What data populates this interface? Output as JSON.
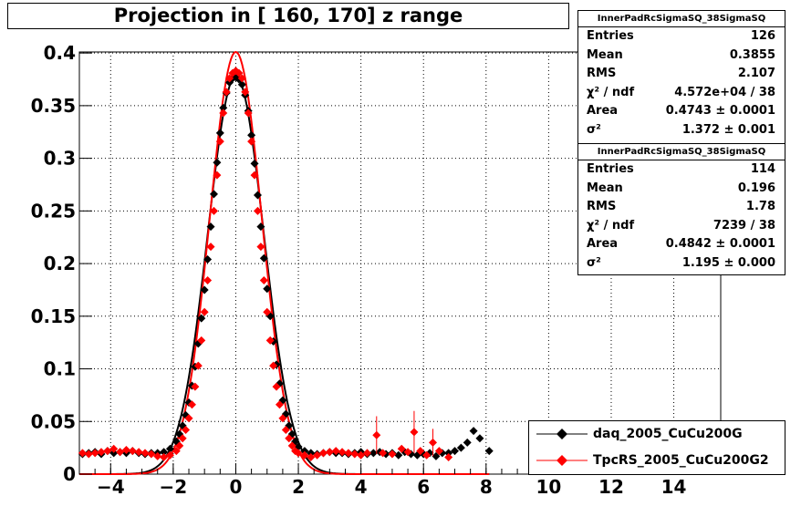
{
  "title": "Projection in [ 160, 170] z range",
  "stats": [
    {
      "name": "InnerPadRcSigmaSQ_38SigmaSQ",
      "rows": [
        {
          "key": "Entries",
          "value": "126"
        },
        {
          "key": "Mean",
          "value": "0.3855"
        },
        {
          "key": "RMS",
          "value": "2.107"
        },
        {
          "key": "χ² / ndf",
          "value": "4.572e+04 / 38"
        },
        {
          "key": "Area",
          "value": "0.4743 ± 0.0001"
        },
        {
          "key": "σ²",
          "value": "1.372 ± 0.001"
        }
      ]
    },
    {
      "name": "InnerPadRcSigmaSQ_38SigmaSQ",
      "rows": [
        {
          "key": "Entries",
          "value": "114"
        },
        {
          "key": "Mean",
          "value": "0.196"
        },
        {
          "key": "RMS",
          "value": "1.78"
        },
        {
          "key": "χ² / ndf",
          "value": "7239 / 38"
        },
        {
          "key": "Area",
          "value": "0.4842 ± 0.0001"
        },
        {
          "key": "σ²",
          "value": "1.195 ± 0.000"
        }
      ]
    }
  ],
  "legend": [
    {
      "label": "daq_2005_CuCu200G",
      "color": "#000000"
    },
    {
      "label": "TpcRS_2005_CuCu200G2",
      "color": "#ff0000"
    }
  ],
  "chart_data": {
    "type": "scatter",
    "title": "Projection in [ 160, 170] z range",
    "xlim": [
      -5,
      15.5
    ],
    "ylim": [
      0,
      0.401
    ],
    "x_ticks": [
      "−4",
      "−2",
      "0",
      "2",
      "4",
      "6",
      "8",
      "10",
      "12",
      "14"
    ],
    "x_tick_values": [
      -4,
      -2,
      0,
      2,
      4,
      6,
      8,
      10,
      12,
      14
    ],
    "y_ticks": [
      "0",
      "0.05",
      "0.1",
      "0.15",
      "0.2",
      "0.25",
      "0.3",
      "0.35",
      "0.4"
    ],
    "y_tick_values": [
      0,
      0.05,
      0.1,
      0.15,
      0.2,
      0.25,
      0.3,
      0.35,
      0.4
    ],
    "grid": true,
    "series": [
      {
        "name": "daq_2005_CuCu200G",
        "color": "#000000",
        "marker": "diamond",
        "points": [
          [
            -4.9,
            0.019
          ],
          [
            -4.7,
            0.02
          ],
          [
            -4.5,
            0.021
          ],
          [
            -4.3,
            0.019
          ],
          [
            -4.1,
            0.022
          ],
          [
            -3.9,
            0.02
          ],
          [
            -3.7,
            0.021
          ],
          [
            -3.5,
            0.02
          ],
          [
            -3.3,
            0.022
          ],
          [
            -3.1,
            0.02
          ],
          [
            -2.9,
            0.019
          ],
          [
            -2.7,
            0.02
          ],
          [
            -2.5,
            0.02
          ],
          [
            -2.3,
            0.021
          ],
          [
            -2.1,
            0.024
          ],
          [
            -1.9,
            0.031
          ],
          [
            -1.8,
            0.038
          ],
          [
            -1.7,
            0.046
          ],
          [
            -1.6,
            0.056
          ],
          [
            -1.5,
            0.068
          ],
          [
            -1.4,
            0.084
          ],
          [
            -1.3,
            0.102
          ],
          [
            -1.2,
            0.124
          ],
          [
            -1.1,
            0.148
          ],
          [
            -1.0,
            0.175
          ],
          [
            -0.9,
            0.204
          ],
          [
            -0.8,
            0.235
          ],
          [
            -0.7,
            0.266
          ],
          [
            -0.6,
            0.296
          ],
          [
            -0.5,
            0.324
          ],
          [
            -0.4,
            0.348
          ],
          [
            -0.3,
            0.362
          ],
          [
            -0.2,
            0.372
          ],
          [
            -0.1,
            0.376
          ],
          [
            0.0,
            0.377
          ],
          [
            0.1,
            0.375
          ],
          [
            0.2,
            0.37
          ],
          [
            0.3,
            0.36
          ],
          [
            0.4,
            0.345
          ],
          [
            0.5,
            0.322
          ],
          [
            0.6,
            0.295
          ],
          [
            0.7,
            0.265
          ],
          [
            0.8,
            0.235
          ],
          [
            0.9,
            0.205
          ],
          [
            1.0,
            0.176
          ],
          [
            1.1,
            0.15
          ],
          [
            1.2,
            0.126
          ],
          [
            1.3,
            0.104
          ],
          [
            1.4,
            0.086
          ],
          [
            1.5,
            0.07
          ],
          [
            1.6,
            0.057
          ],
          [
            1.7,
            0.046
          ],
          [
            1.8,
            0.038
          ],
          [
            1.9,
            0.031
          ],
          [
            2.0,
            0.026
          ],
          [
            2.2,
            0.022
          ],
          [
            2.4,
            0.02
          ],
          [
            2.6,
            0.019
          ],
          [
            2.8,
            0.02
          ],
          [
            3.0,
            0.021
          ],
          [
            3.2,
            0.02
          ],
          [
            3.4,
            0.02
          ],
          [
            3.6,
            0.019
          ],
          [
            3.8,
            0.02
          ],
          [
            4.0,
            0.021
          ],
          [
            4.2,
            0.019
          ],
          [
            4.4,
            0.02
          ],
          [
            4.6,
            0.021
          ],
          [
            4.8,
            0.019
          ],
          [
            5.0,
            0.02
          ],
          [
            5.2,
            0.018
          ],
          [
            5.4,
            0.021
          ],
          [
            5.6,
            0.019
          ],
          [
            5.8,
            0.018
          ],
          [
            6.0,
            0.019
          ],
          [
            6.2,
            0.02
          ],
          [
            6.4,
            0.017
          ],
          [
            6.6,
            0.02
          ],
          [
            6.8,
            0.02
          ],
          [
            7.0,
            0.022
          ],
          [
            7.2,
            0.025
          ],
          [
            7.4,
            0.03
          ],
          [
            7.6,
            0.041
          ],
          [
            7.8,
            0.034
          ],
          [
            8.1,
            0.022
          ]
        ]
      },
      {
        "name": "TpcRS_2005_CuCu200G2",
        "color": "#ff0000",
        "marker": "diamond",
        "points": [
          [
            -4.9,
            0.02
          ],
          [
            -4.7,
            0.019
          ],
          [
            -4.5,
            0.02
          ],
          [
            -4.3,
            0.021
          ],
          [
            -4.1,
            0.022
          ],
          [
            -3.9,
            0.024
          ],
          [
            -3.7,
            0.021
          ],
          [
            -3.5,
            0.023
          ],
          [
            -3.3,
            0.022
          ],
          [
            -3.1,
            0.021
          ],
          [
            -2.9,
            0.02
          ],
          [
            -2.7,
            0.019
          ],
          [
            -2.5,
            0.017
          ],
          [
            -2.3,
            0.016
          ],
          [
            -2.1,
            0.018
          ],
          [
            -1.9,
            0.022
          ],
          [
            -1.8,
            0.027
          ],
          [
            -1.7,
            0.034
          ],
          [
            -1.6,
            0.042
          ],
          [
            -1.5,
            0.053
          ],
          [
            -1.4,
            0.066
          ],
          [
            -1.3,
            0.083
          ],
          [
            -1.2,
            0.103
          ],
          [
            -1.1,
            0.127
          ],
          [
            -1.0,
            0.154
          ],
          [
            -0.9,
            0.184
          ],
          [
            -0.8,
            0.216
          ],
          [
            -0.7,
            0.25
          ],
          [
            -0.6,
            0.284
          ],
          [
            -0.5,
            0.316
          ],
          [
            -0.4,
            0.343
          ],
          [
            -0.3,
            0.363
          ],
          [
            -0.2,
            0.376
          ],
          [
            -0.1,
            0.381
          ],
          [
            0.0,
            0.383
          ],
          [
            0.1,
            0.381
          ],
          [
            0.2,
            0.376
          ],
          [
            0.3,
            0.363
          ],
          [
            0.4,
            0.343
          ],
          [
            0.5,
            0.316
          ],
          [
            0.6,
            0.284
          ],
          [
            0.7,
            0.25
          ],
          [
            0.8,
            0.216
          ],
          [
            0.9,
            0.184
          ],
          [
            1.0,
            0.154
          ],
          [
            1.1,
            0.127
          ],
          [
            1.2,
            0.103
          ],
          [
            1.3,
            0.083
          ],
          [
            1.4,
            0.066
          ],
          [
            1.5,
            0.053
          ],
          [
            1.6,
            0.042
          ],
          [
            1.7,
            0.034
          ],
          [
            1.8,
            0.027
          ],
          [
            1.9,
            0.022
          ],
          [
            2.0,
            0.02
          ],
          [
            2.2,
            0.018
          ],
          [
            2.4,
            0.016
          ],
          [
            2.6,
            0.018
          ],
          [
            2.8,
            0.02
          ],
          [
            3.0,
            0.021
          ],
          [
            3.2,
            0.022
          ],
          [
            3.4,
            0.021
          ],
          [
            3.6,
            0.02
          ],
          [
            3.8,
            0.019
          ],
          [
            4.0,
            0.018
          ],
          [
            4.2,
            0.02
          ],
          [
            4.5,
            0.037
          ],
          [
            4.7,
            0.02
          ],
          [
            5.0,
            0.019
          ],
          [
            5.3,
            0.024
          ],
          [
            5.5,
            0.021
          ],
          [
            5.7,
            0.04
          ],
          [
            5.9,
            0.022
          ],
          [
            6.1,
            0.018
          ],
          [
            6.3,
            0.03
          ],
          [
            6.5,
            0.022
          ],
          [
            6.8,
            0.016
          ]
        ],
        "errors": [
          [
            4.5,
            0.018
          ],
          [
            5.7,
            0.02
          ],
          [
            6.3,
            0.013
          ]
        ]
      }
    ],
    "curves": [
      {
        "name": "daq_2005_CuCu200G fit",
        "color": "#000000",
        "sigma2": 1.372
      },
      {
        "name": "TpcRS_2005_CuCu200G2 fit",
        "color": "#ff0000",
        "sigma2": 1.195
      }
    ]
  }
}
